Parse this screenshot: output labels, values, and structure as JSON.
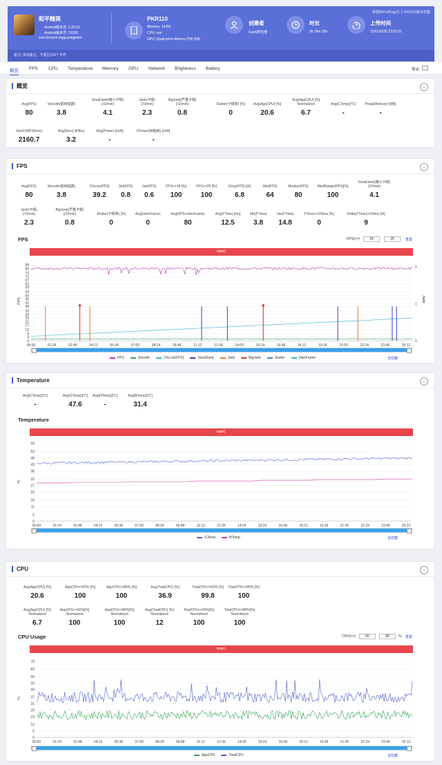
{
  "header": {
    "app_name": "和平精英",
    "android_ver": "Android版本名: 1.30.21",
    "android_code": "Android版本号: 13200",
    "package": "com.tencent.tmgp.pubgmhd",
    "device": "PKR110",
    "memory": "Memory: 14.8G",
    "cpu": "CPU: sun",
    "gpu": "GPU: Qualcomm Adreno (TM) 830",
    "creator_label": "创建者",
    "creator_value": "Geek研究僧",
    "duration_label": "时长",
    "duration_value": "0h 26m 35s",
    "upload_label": "上传时间",
    "upload_value": "31/01/2025 23:52:31",
    "source": "数据由PerfDog(11.1.250106)版本收集",
    "note": "备注: 添加备注，不超过200个字符"
  },
  "tabs": [
    "概览",
    "FPS",
    "CPU",
    "Temperature",
    "Memory",
    "GPU",
    "Network",
    "Brightness",
    "Battery"
  ],
  "export_label": "导出",
  "overview": {
    "title": "概览",
    "row1": [
      {
        "l": "Avg(FPS)",
        "v": "80"
      },
      {
        "l": "Smooth(稳帧指数)",
        "v": "3.8"
      },
      {
        "l": "SmallJank(微小卡顿)\n(/10min)",
        "v": "4.1"
      },
      {
        "l": "Jank(卡顿)\n(/10min)",
        "v": "2.3"
      },
      {
        "l": "BigJank(严重卡顿)\n(/10min)",
        "v": "0.8"
      },
      {
        "l": "Stutter(卡顿率) [%]",
        "v": "0"
      },
      {
        "l": "Avg(AppCPU) [%]",
        "v": "20.6"
      },
      {
        "l": "Avg(AppCPU) [%]\nNormalized",
        "v": "6.7"
      },
      {
        "l": "Avg(CTemp)[°C]",
        "v": "-"
      },
      {
        "l": "Peak(Memory) [MB]",
        "v": "-"
      }
    ],
    "row2": [
      {
        "l": "Send [KB/10min]",
        "v": "2160.7"
      },
      {
        "l": "Avg(Recv) [KB/s]",
        "v": "3.2"
      },
      {
        "l": "Avg(Power) [mW]",
        "v": "-"
      },
      {
        "l": "FPower(帧能耗) [mW]",
        "v": "-"
      }
    ]
  },
  "fps": {
    "title": "FPS",
    "row1": [
      {
        "l": "Avg(FPS)",
        "v": "80"
      },
      {
        "l": "Smooth(稳帧指数)",
        "v": "3.8"
      },
      {
        "l": "1%Low(FPS)",
        "v": "39.2"
      },
      {
        "l": "Std(FPS)",
        "v": "0.8"
      },
      {
        "l": "Var(FPS)",
        "v": "0.6"
      },
      {
        "l": "FPS>=18 [%]",
        "v": "100"
      },
      {
        "l": "FPS>=25 [%]",
        "v": "100"
      },
      {
        "l": "Drop(FPS) [/h]",
        "v": "6.8"
      },
      {
        "l": "Min(FPS)",
        "v": "64"
      },
      {
        "l": "Median(FPS)",
        "v": "80"
      },
      {
        "l": "MedRange(FPS)[%]",
        "v": "100"
      },
      {
        "l": "SmallJank(微小卡顿)\n(/10min)",
        "v": "4.1"
      }
    ],
    "row2": [
      {
        "l": "Jank(卡顿)\n(/10min)",
        "v": "2.3"
      },
      {
        "l": "BigJank(严重卡顿)\n(/10min)",
        "v": "0.8"
      },
      {
        "l": "Stutter(卡顿率) [%]",
        "v": "0"
      },
      {
        "l": "Avg(InterFrame)",
        "v": "0"
      },
      {
        "l": "Avg(FPS+InterFrame)",
        "v": "80"
      },
      {
        "l": "Avg(FTime) [ms]",
        "v": "12.5"
      },
      {
        "l": "Std(FTime)",
        "v": "3.8"
      },
      {
        "l": "Var(FTime)",
        "v": "14.8"
      },
      {
        "l": "FTime>=100ms [%]",
        "v": "0"
      },
      {
        "l": "Delta(FTime)>100ms [/h]",
        "v": "9"
      }
    ],
    "chart_title": "FPS",
    "threshold_label": "FPS(>=)",
    "threshold_1": "18",
    "threshold_2": "25",
    "reset": "重置",
    "label_bar": "label1",
    "legend": [
      "FPS",
      "Smooth",
      "1%Low(FPS)",
      "SmallJank",
      "Jank",
      "BigJank",
      "Stutter",
      "InterFrame"
    ],
    "hide_all": "全隐藏"
  },
  "temperature": {
    "title": "Temperature",
    "row1": [
      {
        "l": "Avg(CTemp)[°C]",
        "v": "-"
      },
      {
        "l": "Avg(GTemp)[°C]",
        "v": "47.6"
      },
      {
        "l": "Avg(NTemp)[°C]",
        "v": "-"
      },
      {
        "l": "Avg(BTemp)[°C]",
        "v": "31.4"
      }
    ],
    "chart_title": "Temperature",
    "label_bar": "label1",
    "legend": [
      "GTemp",
      "BTemp"
    ],
    "hide_all": "全隐藏"
  },
  "cpu": {
    "title": "CPU",
    "row1": [
      {
        "l": "Avg(AppCPU) [%]",
        "v": "20.6"
      },
      {
        "l": "AppCPU<=60% [%]",
        "v": "100"
      },
      {
        "l": "AppCPU<=80% [%]",
        "v": "100"
      },
      {
        "l": "Avg(TotalCPU) [%]",
        "v": "36.9"
      },
      {
        "l": "TotalCPU<=60% [%]",
        "v": "99.8"
      },
      {
        "l": "TotalCPU<=80% [%]",
        "v": "100"
      }
    ],
    "row2": [
      {
        "l": "Avg(AppCPU) [%]\nNormalized",
        "v": "6.7"
      },
      {
        "l": "AppCPU<=60%[%]\nNormalized",
        "v": "100"
      },
      {
        "l": "AppCPU<=80%[%]\nNormalized",
        "v": "100"
      },
      {
        "l": "Avg(TotalCPU) [%]\nNormalized",
        "v": "12"
      },
      {
        "l": "TotalCPU<=60%[%]\nNormalized",
        "v": "100"
      },
      {
        "l": "TotalCPU<=80%[%]\nNormalized",
        "v": "100"
      }
    ],
    "chart_title": "CPU Usage",
    "threshold_label": "CPU(<=)",
    "threshold_1": "60",
    "threshold_2": "80",
    "unit": "%",
    "reset": "重置",
    "label_bar": "label1",
    "legend": [
      "AppCPU",
      "TotalCPU"
    ],
    "hide_all": "全隐藏"
  },
  "colors": {
    "accent": "#5b6fd8",
    "fps": "#b82fb0",
    "smooth": "#3aa05a",
    "low1": "#35b3c9",
    "smalljank": "#3340b5",
    "jank": "#e8742a",
    "bigjank": "#e23b3b",
    "gtemp": "#4a5cc8",
    "btemp": "#d43fa3",
    "appcpu": "#2aa04a",
    "totalcpu": "#4a5cc8",
    "redbar": "#e8464c"
  },
  "chart_data": [
    {
      "type": "line",
      "title": "FPS",
      "ylabel": "FPS",
      "y2label": "Jank",
      "x": [
        "00:00",
        "01:24",
        "02:48",
        "04:12",
        "05:36",
        "07:00",
        "08:24",
        "09:48",
        "11:12",
        "12:36",
        "14:00",
        "15:24",
        "16:48",
        "18:12",
        "19:36",
        "21:00",
        "22:24",
        "23:48",
        "25:12"
      ],
      "y_ticks": [
        0,
        4,
        8,
        12,
        17,
        21,
        25,
        29,
        33,
        38,
        42,
        46,
        50,
        54,
        59,
        63,
        67,
        71,
        75,
        80,
        84
      ],
      "y2_ticks": [
        0,
        1,
        2
      ],
      "ylim": [
        0,
        88
      ],
      "series": [
        {
          "name": "FPS",
          "approx": 80
        },
        {
          "name": "1%Low(FPS)",
          "from": 5,
          "to": 25
        },
        {
          "name": "Smooth",
          "approx": 2
        }
      ],
      "jank_events_min": [
        1.0,
        3.4,
        4.1,
        16.2,
        22.8
      ],
      "bigjank_events_min": [
        3.4,
        16.2
      ],
      "smalljank_events_min": [
        11.9,
        13.7,
        21.4,
        25.2,
        25.5
      ]
    },
    {
      "type": "line",
      "title": "Temperature",
      "ylabel": "℃",
      "x": [
        "00:00",
        "01:24",
        "02:48",
        "04:12",
        "05:36",
        "07:00",
        "08:24",
        "09:48",
        "11:12",
        "12:36",
        "14:00",
        "15:24",
        "16:48",
        "18:12",
        "19:36",
        "21:00",
        "22:24",
        "23:48",
        "25:12"
      ],
      "y_ticks": [
        0,
        5,
        11,
        16,
        22,
        27,
        32,
        38,
        43,
        48,
        53,
        59
      ],
      "ylim": [
        0,
        60
      ],
      "series": [
        {
          "name": "GTemp",
          "from": 44,
          "to": 48
        },
        {
          "name": "BTemp",
          "from": 29,
          "to": 32
        }
      ]
    },
    {
      "type": "line",
      "title": "CPU Usage",
      "ylabel": "%",
      "x": [
        "00:00",
        "01:24",
        "02:48",
        "04:12",
        "05:36",
        "07:00",
        "08:24",
        "09:48",
        "11:12",
        "12:36",
        "14:00",
        "15:24",
        "16:48",
        "18:12",
        "19:36",
        "21:00",
        "22:24",
        "23:48",
        "25:12"
      ],
      "y_ticks": [
        0,
        6,
        12,
        19,
        25,
        31,
        37,
        44,
        50,
        56,
        63,
        70
      ],
      "ylim": [
        0,
        72
      ],
      "series": [
        {
          "name": "AppCPU",
          "approx": 20.6
        },
        {
          "name": "TotalCPU",
          "approx": 36.9
        }
      ]
    }
  ]
}
